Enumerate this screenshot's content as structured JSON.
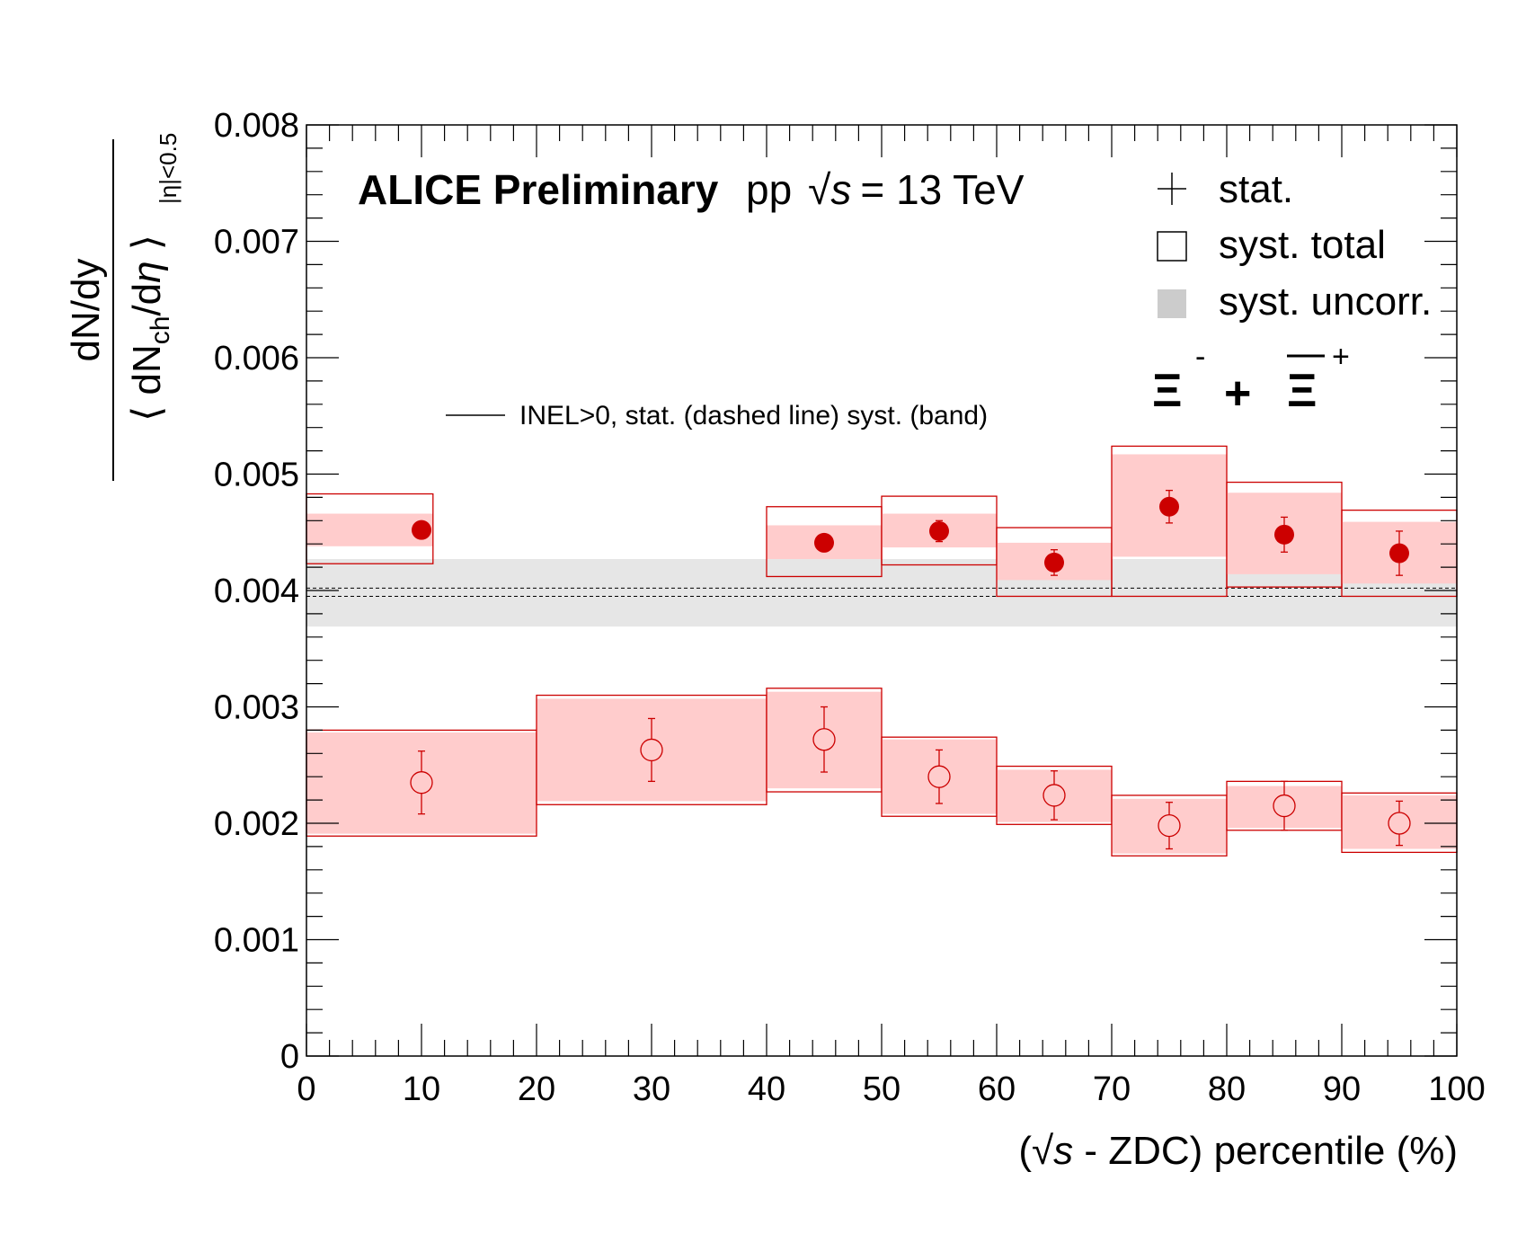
{
  "chart_data": {
    "type": "scatter",
    "collaboration_label": "ALICE Preliminary",
    "system_label": {
      "prefix": "pp",
      "sqrt": "√",
      "variable": "s",
      "suffix": "= 13 TeV"
    },
    "particle_label": {
      "a": "Ξ",
      "a_charge": "-",
      "plus": "+",
      "b": "Ξ",
      "b_charge": "+"
    },
    "xlabel": {
      "open": "(",
      "sqrt": "√",
      "variable": "s",
      "rest": " - ZDC) percentile (%)"
    },
    "ylabel": {
      "numerator": "dN/dy",
      "den_open": "⟨ dN",
      "den_sub": "ch",
      "den_mid": "/d",
      "den_eta": "η",
      "den_close": " ⟩",
      "range_sub": "|η|<0.5"
    },
    "xlim": [
      0,
      100
    ],
    "ylim": [
      0,
      0.008
    ],
    "x_ticks": [
      "0",
      "10",
      "20",
      "30",
      "40",
      "50",
      "60",
      "70",
      "80",
      "90",
      "100"
    ],
    "y_ticks": [
      "0",
      "0.001",
      "0.002",
      "0.003",
      "0.004",
      "0.005",
      "0.006",
      "0.007",
      "0.008"
    ],
    "legend": {
      "position": "top-right",
      "entries": [
        {
          "marker": "cross",
          "label": "stat."
        },
        {
          "marker": "open-box",
          "label": "syst. total"
        },
        {
          "marker": "filled-box",
          "label": "syst. uncorr."
        }
      ]
    },
    "inel_reference": {
      "label": "INEL>0, stat. (dashed line) syst. (band)",
      "value": 0.00398,
      "stat_low": 0.00395,
      "stat_high": 0.00402,
      "syst_low": 0.00369,
      "syst_high": 0.00427
    },
    "colors": {
      "marker": "#cc0000",
      "band_fill": "#ffcccc",
      "inel_band": "#e6e6e6",
      "legend_box": "#cccccc"
    },
    "series": [
      {
        "marker": "filled-circle",
        "points": [
          {
            "x": 10,
            "xmin": 0,
            "xmax": 11,
            "y": 0.00452,
            "stat": 6e-05,
            "syst_total": [
              0.00423,
              0.00483
            ],
            "syst_uncorr": [
              0.00438,
              0.00466
            ]
          },
          {
            "x": 45,
            "xmin": 40,
            "xmax": 50,
            "y": 0.00441,
            "stat": 6e-05,
            "syst_total": [
              0.00412,
              0.00472
            ],
            "syst_uncorr": [
              0.00427,
              0.00456
            ]
          },
          {
            "x": 55,
            "xmin": 50,
            "xmax": 60,
            "y": 0.00451,
            "stat": 9e-05,
            "syst_total": [
              0.00422,
              0.00481
            ],
            "syst_uncorr": [
              0.00437,
              0.00466
            ]
          },
          {
            "x": 65,
            "xmin": 60,
            "xmax": 70,
            "y": 0.00424,
            "stat": 0.00011,
            "syst_total": [
              0.00395,
              0.00454
            ],
            "syst_uncorr": [
              0.00409,
              0.00441
            ]
          },
          {
            "x": 75,
            "xmin": 70,
            "xmax": 80,
            "y": 0.00472,
            "stat": 0.00014,
            "syst_total": [
              0.00395,
              0.00524
            ],
            "syst_uncorr": [
              0.00429,
              0.00517
            ]
          },
          {
            "x": 85,
            "xmin": 80,
            "xmax": 90,
            "y": 0.00448,
            "stat": 0.00015,
            "syst_total": [
              0.00403,
              0.00493
            ],
            "syst_uncorr": [
              0.00414,
              0.00484
            ]
          },
          {
            "x": 95,
            "xmin": 90,
            "xmax": 100,
            "y": 0.00432,
            "stat": 0.00019,
            "syst_total": [
              0.00395,
              0.00469
            ],
            "syst_uncorr": [
              0.00406,
              0.00459
            ]
          }
        ]
      },
      {
        "marker": "open-circle",
        "points": [
          {
            "x": 10,
            "xmin": 0,
            "xmax": 20,
            "y": 0.00235,
            "stat": 0.00027,
            "syst_total": [
              0.00189,
              0.0028
            ],
            "syst_uncorr": [
              0.00191,
              0.00278
            ]
          },
          {
            "x": 30,
            "xmin": 20,
            "xmax": 40,
            "y": 0.00263,
            "stat": 0.00027,
            "syst_total": [
              0.00216,
              0.0031
            ],
            "syst_uncorr": [
              0.00219,
              0.00307
            ]
          },
          {
            "x": 45,
            "xmin": 40,
            "xmax": 50,
            "y": 0.00272,
            "stat": 0.00028,
            "syst_total": [
              0.00227,
              0.00316
            ],
            "syst_uncorr": [
              0.0023,
              0.00313
            ]
          },
          {
            "x": 55,
            "xmin": 50,
            "xmax": 60,
            "y": 0.0024,
            "stat": 0.00023,
            "syst_total": [
              0.00206,
              0.00274
            ],
            "syst_uncorr": [
              0.00208,
              0.00272
            ]
          },
          {
            "x": 65,
            "xmin": 60,
            "xmax": 70,
            "y": 0.00224,
            "stat": 0.00021,
            "syst_total": [
              0.00199,
              0.00249
            ],
            "syst_uncorr": [
              0.00201,
              0.00246
            ]
          },
          {
            "x": 75,
            "xmin": 70,
            "xmax": 80,
            "y": 0.00198,
            "stat": 0.0002,
            "syst_total": [
              0.00172,
              0.00224
            ],
            "syst_uncorr": [
              0.00174,
              0.00221
            ]
          },
          {
            "x": 85,
            "xmin": 80,
            "xmax": 90,
            "y": 0.00215,
            "stat": 0.00021,
            "syst_total": [
              0.00194,
              0.00236
            ],
            "syst_uncorr": [
              0.00196,
              0.00232
            ]
          },
          {
            "x": 95,
            "xmin": 90,
            "xmax": 100,
            "y": 0.002,
            "stat": 0.00019,
            "syst_total": [
              0.00175,
              0.00226
            ],
            "syst_uncorr": [
              0.00178,
              0.00224
            ]
          }
        ]
      }
    ]
  }
}
